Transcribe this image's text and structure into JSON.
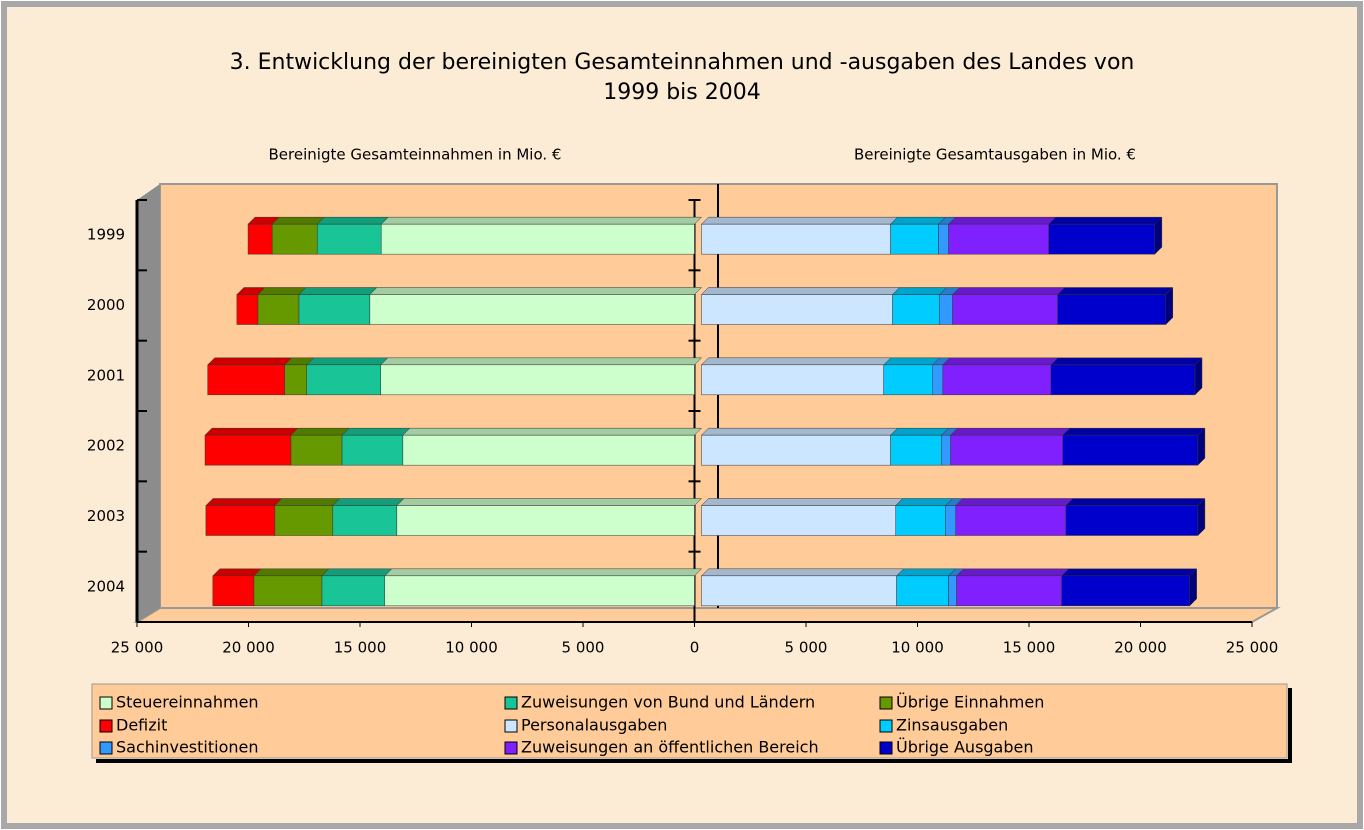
{
  "chart_data": {
    "type": "butterfly_bar",
    "title": [
      "3. Entwicklung der bereinigten Gesamteinnahmen und -ausgaben des Landes von",
      "1999 bis 2004"
    ],
    "left_label": "Bereinigte Gesamteinnahmen in Mio. €",
    "right_label": "Bereinigte Gesamtausgaben in Mio. €",
    "categories": [
      "1999",
      "2000",
      "2001",
      "2002",
      "2003",
      "2004"
    ],
    "series": [
      {
        "name": "Steuereinnahmen",
        "side": "left",
        "color": "#ccffcc",
        "values": [
          14050,
          14560,
          14070,
          13080,
          13350,
          13890
        ]
      },
      {
        "name": "Zuweisungen von Bund und Ländern",
        "side": "left",
        "color": "#19c497",
        "values": [
          2870,
          3180,
          3320,
          2730,
          2870,
          2820
        ]
      },
      {
        "name": "Übrige Einnahmen",
        "side": "left",
        "color": "#669900",
        "values": [
          2020,
          1840,
          990,
          2290,
          2600,
          3050
        ]
      },
      {
        "name": "Defizit",
        "side": "left",
        "color": "#ff0000",
        "values": [
          1080,
          940,
          3450,
          3850,
          3090,
          1840
        ]
      },
      {
        "name": "Personalausgaben",
        "side": "right",
        "color": "#cce6ff",
        "values": [
          8480,
          8570,
          8170,
          8480,
          8710,
          8750
        ]
      },
      {
        "name": "Zinsausgaben",
        "side": "right",
        "color": "#00ccff",
        "values": [
          2150,
          2110,
          2200,
          2290,
          2240,
          2330
        ]
      },
      {
        "name": "Sachinvestitionen",
        "side": "right",
        "color": "#3399ff",
        "values": [
          450,
          580,
          450,
          400,
          450,
          360
        ]
      },
      {
        "name": "Zuweisungen an öffentlichen Bereich",
        "side": "right",
        "color": "#8020ff",
        "values": [
          4490,
          4710,
          4850,
          5030,
          4940,
          4710
        ]
      },
      {
        "name": "Übrige Ausgaben",
        "side": "right",
        "color": "#0000cc",
        "values": [
          4760,
          4850,
          6460,
          6060,
          5920,
          5740
        ]
      }
    ],
    "xlim": [
      -25000,
      25000
    ],
    "xticks": [
      {
        "value": -25000,
        "label": "25 000"
      },
      {
        "value": -20000,
        "label": "20 000"
      },
      {
        "value": -15000,
        "label": "15 000"
      },
      {
        "value": -10000,
        "label": "10 000"
      },
      {
        "value": -5000,
        "label": "5 000"
      },
      0,
      {
        "value": 5000,
        "label": "5 000"
      },
      {
        "value": 10000,
        "label": "10 000"
      },
      {
        "value": 15000,
        "label": "15 000"
      },
      {
        "value": 20000,
        "label": "20 000"
      },
      {
        "value": 25000,
        "label": "25 000"
      }
    ]
  }
}
